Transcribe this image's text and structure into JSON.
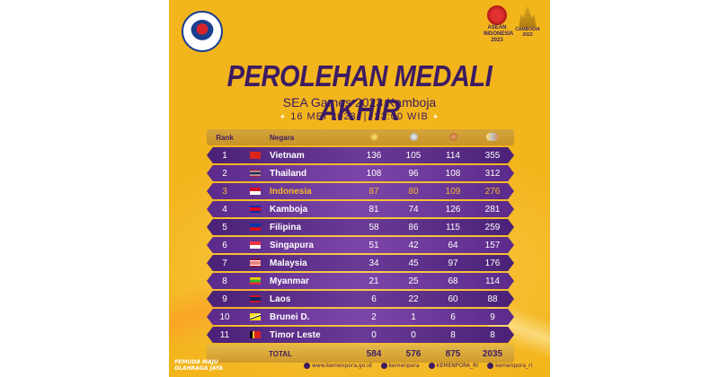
{
  "header": {
    "title": "PEROLEHAN MEDALI AKHIR",
    "subtitle": "SEA Games 2023 Kamboja",
    "date": "16 MEI 2023",
    "time": "23:00 WIB"
  },
  "logos": {
    "asean_text_1": "ASEAN",
    "asean_text_2": "INDONESIA",
    "asean_text_3": "2023",
    "camb_text": "CAMBODIA 2023"
  },
  "table": {
    "headers": {
      "rank": "Rank",
      "country": "Negara"
    },
    "medal_icons": [
      "gold-medal-icon",
      "silver-medal-icon",
      "bronze-medal-icon",
      "total-medals-icon"
    ],
    "rows": [
      {
        "rank": "1",
        "country": "Vietnam",
        "flag": "vietnam-flag-icon",
        "gold": "136",
        "silver": "105",
        "bronze": "114",
        "total": "355"
      },
      {
        "rank": "2",
        "country": "Thailand",
        "flag": "thailand-flag-icon",
        "gold": "108",
        "silver": "96",
        "bronze": "108",
        "total": "312"
      },
      {
        "rank": "3",
        "country": "Indonesia",
        "flag": "indonesia-flag-icon",
        "gold": "87",
        "silver": "80",
        "bronze": "109",
        "total": "276"
      },
      {
        "rank": "4",
        "country": "Kamboja",
        "flag": "cambodia-flag-icon",
        "gold": "81",
        "silver": "74",
        "bronze": "126",
        "total": "281"
      },
      {
        "rank": "5",
        "country": "Filipina",
        "flag": "philippines-flag-icon",
        "gold": "58",
        "silver": "86",
        "bronze": "115",
        "total": "259"
      },
      {
        "rank": "6",
        "country": "Singapura",
        "flag": "singapore-flag-icon",
        "gold": "51",
        "silver": "42",
        "bronze": "64",
        "total": "157"
      },
      {
        "rank": "7",
        "country": "Malaysia",
        "flag": "malaysia-flag-icon",
        "gold": "34",
        "silver": "45",
        "bronze": "97",
        "total": "176"
      },
      {
        "rank": "8",
        "country": "Myanmar",
        "flag": "myanmar-flag-icon",
        "gold": "21",
        "silver": "25",
        "bronze": "68",
        "total": "114"
      },
      {
        "rank": "9",
        "country": "Laos",
        "flag": "laos-flag-icon",
        "gold": "6",
        "silver": "22",
        "bronze": "60",
        "total": "88"
      },
      {
        "rank": "10",
        "country": "Brunei D.",
        "flag": "brunei-flag-icon",
        "gold": "2",
        "silver": "1",
        "bronze": "6",
        "total": "9"
      },
      {
        "rank": "11",
        "country": "Timor Leste",
        "flag": "timor-leste-flag-icon",
        "gold": "0",
        "silver": "0",
        "bronze": "8",
        "total": "8"
      }
    ],
    "total": {
      "label": "TOTAL",
      "gold": "584",
      "silver": "576",
      "bronze": "875",
      "total": "2035"
    }
  },
  "footer": {
    "slogan_1": "PEMUDA MAJU",
    "slogan_2": "OLAHRAGA JAYA",
    "website": "www.kemenpora.go.id",
    "instagram": "kemenpora",
    "twitter": "KEMENPORA_RI",
    "facebook": "kemenpora_ri"
  },
  "colors": {
    "background": "#f3b51c",
    "purple": "#3d1b63",
    "row_purple": "#5b2a8a",
    "highlight": "#f5b82a"
  }
}
